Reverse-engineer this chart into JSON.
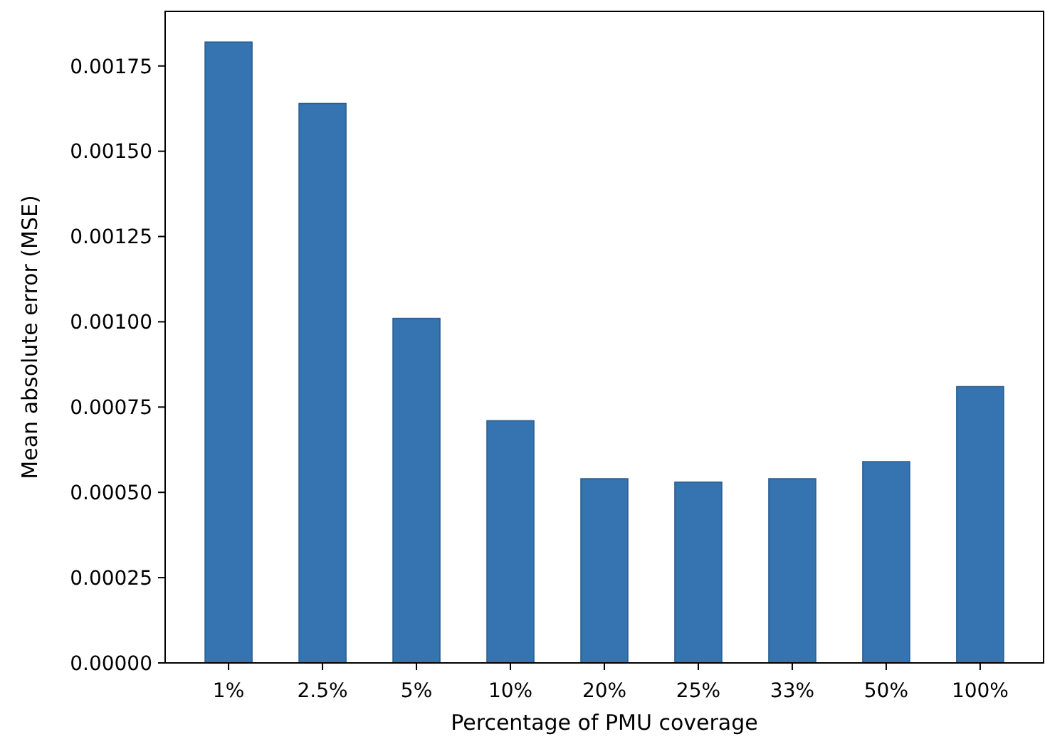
{
  "chart_data": {
    "type": "bar",
    "xlabel": "Percentage of PMU coverage",
    "ylabel": "Mean absolute error (MSE)",
    "categories": [
      "1%",
      "2.5%",
      "5%",
      "10%",
      "20%",
      "25%",
      "33%",
      "50%",
      "100%"
    ],
    "values": [
      0.00182,
      0.00164,
      0.00101,
      0.00071,
      0.00054,
      0.00053,
      0.00054,
      0.00059,
      0.00081
    ],
    "color": "#3574b0",
    "ylim": [
      0,
      0.00191
    ],
    "yticks": [
      {
        "value": 0,
        "label": "0.00000"
      },
      {
        "value": 0.00025,
        "label": "0.00025"
      },
      {
        "value": 0.0005,
        "label": "0.00050"
      },
      {
        "value": 0.00075,
        "label": "0.00075"
      },
      {
        "value": 0.001,
        "label": "0.00100"
      },
      {
        "value": 0.00125,
        "label": "0.00125"
      },
      {
        "value": 0.0015,
        "label": "0.00150"
      },
      {
        "value": 0.00175,
        "label": "0.00175"
      }
    ],
    "grid": false
  }
}
